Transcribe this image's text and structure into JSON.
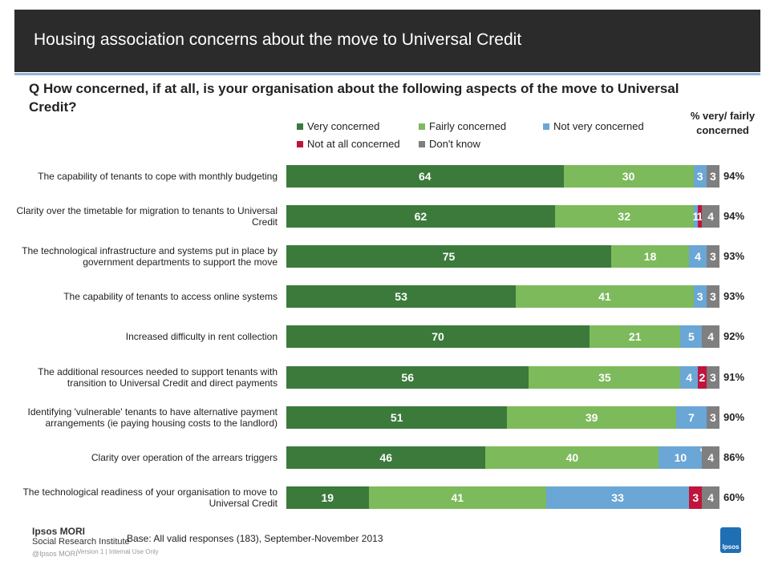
{
  "chart_data": {
    "type": "stacked-bar-horizontal",
    "title": "Housing association concerns about the move to Universal Credit",
    "subtitle": "Q  How concerned, if at all, is your organisation about the following aspects of the move to Universal Credit?",
    "categories": [
      "The capability of tenants to cope with monthly budgeting",
      "Clarity over the timetable for migration to tenants to Universal Credit",
      "The technological infrastructure and systems put in place by government departments to support the move",
      "The capability of tenants to access online systems",
      "Increased difficulty in rent collection",
      "The additional resources needed to support tenants with transition to Universal Credit and direct payments",
      "Identifying 'vulnerable' tenants to have alternative payment arrangements (ie paying housing costs to the landlord)",
      "Clarity over operation of the arrears triggers",
      "The technological readiness of your organisation to move to Universal Credit"
    ],
    "xlim": [
      0,
      100
    ],
    "series": [
      {
        "name": "Very concerned",
        "color": "#3b7a3b",
        "values": [
          64,
          62,
          75,
          53,
          70,
          56,
          51,
          46,
          19
        ]
      },
      {
        "name": "Fairly concerned",
        "color": "#7dba5b",
        "values": [
          30,
          32,
          18,
          41,
          21,
          35,
          39,
          40,
          41
        ]
      },
      {
        "name": "Not very concerned",
        "color": "#6aa6d6",
        "values": [
          3,
          1,
          4,
          3,
          5,
          4,
          7,
          10,
          33
        ]
      },
      {
        "name": "Not at all concerned",
        "color": "#c0143c",
        "values": [
          null,
          1,
          null,
          null,
          null,
          2,
          null,
          0,
          3
        ],
        "value_labels": [
          null,
          null,
          null,
          null,
          null,
          null,
          null,
          "*",
          null
        ]
      },
      {
        "name": "Don't know",
        "color": "#7f7f7f",
        "values": [
          3,
          4,
          3,
          3,
          4,
          3,
          3,
          4,
          4
        ]
      }
    ],
    "totals": {
      "title": "% very/ fairly concerned",
      "values": [
        94,
        94,
        93,
        93,
        92,
        91,
        90,
        86,
        60
      ],
      "value_labels": [
        "94%",
        "94%",
        "93%",
        "93%",
        "92%",
        "91%",
        "90%",
        "86%",
        "60%"
      ]
    },
    "footer": {
      "base": "Base: All valid responses (183), September-November 2013",
      "org": "Ipsos MORI",
      "org_sub": "Social Research Institute",
      "copyright": "@Ipsos MORI",
      "version": "Version 1 | Internal Use Only",
      "logo": "Ipsos"
    }
  }
}
